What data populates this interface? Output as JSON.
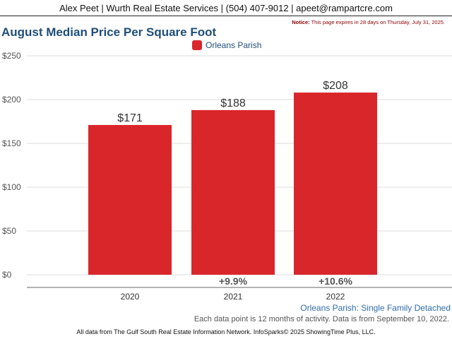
{
  "header": {
    "contact_line": "Alex Peet | Wurth Real Estate Services | (504) 407-9012 | apeet@rampartcre.com"
  },
  "notice": {
    "label": "Notice:",
    "text": "This page expires in 28 days on Thursday, July 31, 2025."
  },
  "chart_data": {
    "type": "bar",
    "title": "August Median Price Per Square Foot",
    "categories": [
      "2020",
      "2021",
      "2022"
    ],
    "series": [
      {
        "name": "Orleans Parish",
        "values": [
          171,
          188,
          208
        ],
        "color": "#d9262a"
      }
    ],
    "value_labels": [
      "$171",
      "$188",
      "$208"
    ],
    "change_labels": [
      "",
      "+9.9%",
      "+10.6%"
    ],
    "y_ticks": [
      0,
      50,
      100,
      150,
      200,
      250
    ],
    "y_tick_labels": [
      "$0",
      "$50",
      "$100",
      "$150",
      "$200",
      "$250"
    ],
    "ylim": [
      0,
      250
    ],
    "grid": true,
    "legend_position": "top-center",
    "subtitle": "Orleans Parish: Single Family Detached",
    "footnote": "Each data point is 12 months of activity. Data is from September 10, 2022.",
    "source": "All data from The Gulf South Real Estate Information Network. InfoSparks© 2025 ShowingTime Plus, LLC."
  }
}
